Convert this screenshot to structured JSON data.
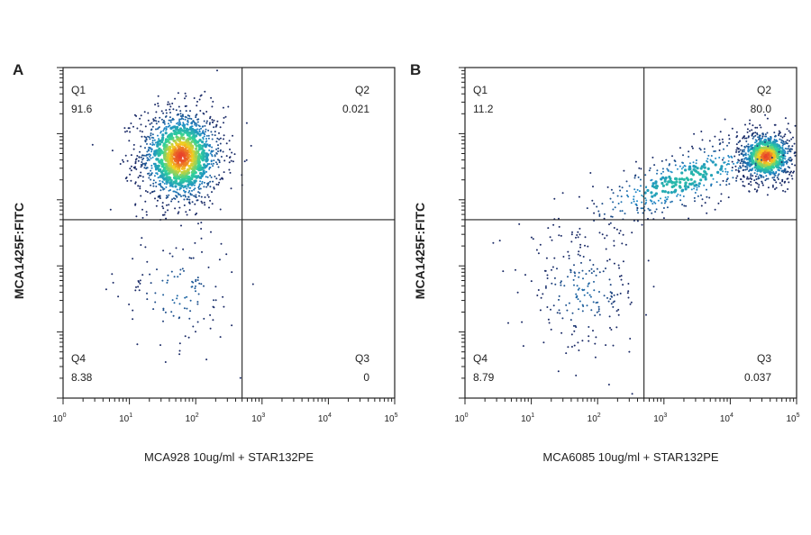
{
  "chart_data": [
    {
      "type": "scatter",
      "panel_label": "A",
      "xlabel": "MCA928 10ug/ml + STAR132PE",
      "ylabel": "MCA1425F:FITC",
      "x_scale": "log",
      "xlim": [
        1,
        100000
      ],
      "y_scale": "log",
      "x_ticks": [
        "10",
        "10",
        "10",
        "10",
        "10",
        "10"
      ],
      "x_tick_exponents": [
        "0",
        "1",
        "2",
        "3",
        "4",
        "5"
      ],
      "quadrant_gate": {
        "x": 500,
        "y": 500
      },
      "quadrants": [
        {
          "name": "Q1",
          "value": "91.6",
          "corner": "top-left"
        },
        {
          "name": "Q2",
          "value": "0.021",
          "corner": "top-right"
        },
        {
          "name": "Q3",
          "value": "0",
          "corner": "bottom-right"
        },
        {
          "name": "Q4",
          "value": "8.38",
          "corner": "bottom-left"
        }
      ],
      "populations": [
        {
          "x_center": 60,
          "y_center": 4500,
          "spread_x_decades": 0.33,
          "spread_y_decades": 0.38,
          "weight": 0.92
        },
        {
          "x_center": 55,
          "y_center": 40,
          "spread_x_decades": 0.45,
          "spread_y_decades": 0.45,
          "weight": 0.08
        }
      ],
      "grid": false
    },
    {
      "type": "scatter",
      "panel_label": "B",
      "xlabel": "MCA6085 10ug/ml + STAR132PE",
      "ylabel": "MCA1425F:FITC",
      "x_scale": "log",
      "xlim": [
        1,
        100000
      ],
      "y_scale": "log",
      "x_ticks": [
        "10",
        "10",
        "10",
        "10",
        "10",
        "10"
      ],
      "x_tick_exponents": [
        "0",
        "1",
        "2",
        "3",
        "4",
        "5"
      ],
      "quadrant_gate": {
        "x": 500,
        "y": 500
      },
      "quadrants": [
        {
          "name": "Q1",
          "value": "11.2",
          "corner": "top-left"
        },
        {
          "name": "Q2",
          "value": "80.0",
          "corner": "top-right"
        },
        {
          "name": "Q3",
          "value": "0.037",
          "corner": "bottom-right"
        },
        {
          "name": "Q4",
          "value": "8.79",
          "corner": "bottom-left"
        }
      ],
      "populations": [
        {
          "x_center": 35000,
          "y_center": 4500,
          "spread_x_decades": 0.22,
          "spread_y_decades": 0.2,
          "weight": 0.55
        },
        {
          "x_center": 2000,
          "y_center": 2000,
          "spread_x_decades": 0.9,
          "spread_y_decades": 0.25,
          "weight": 0.3
        },
        {
          "x_center": 60,
          "y_center": 40,
          "spread_x_decades": 0.45,
          "spread_y_decades": 0.45,
          "weight": 0.15
        }
      ],
      "grid": false
    }
  ],
  "colors": {
    "axis": "#222222",
    "sparse": "#1a2a66",
    "mid": "#1e88c8",
    "high": "#2fd39a",
    "peak": "#f5d020",
    "core": "#e8402a"
  }
}
